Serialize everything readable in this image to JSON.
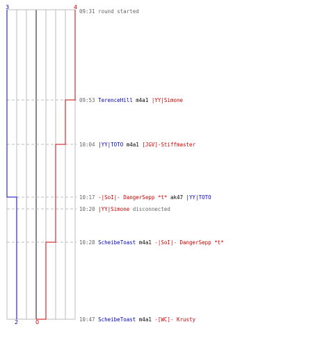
{
  "chart_data": {
    "type": "line",
    "counts": {
      "blue_top": "3",
      "red_top": "4",
      "blue_bottom": "2",
      "red_bottom": "0"
    },
    "colors": {
      "blue": "#0000bb",
      "red": "#cc0000",
      "time": "#666666",
      "grid": "#bbbbbb",
      "text": "#000000"
    },
    "events": [
      {
        "time": "09:31",
        "parts": [
          {
            "text": "round started",
            "color": "time"
          }
        ]
      },
      {
        "time": "09:53",
        "parts": [
          {
            "text": "TerenceHill",
            "color": "blue"
          },
          {
            "text": " m4a1 ",
            "color": "text"
          },
          {
            "text": "|YY|Simone",
            "color": "red"
          }
        ]
      },
      {
        "time": "10:04",
        "parts": [
          {
            "text": "|YY|TOTO",
            "color": "blue"
          },
          {
            "text": " m4a1 ",
            "color": "text"
          },
          {
            "text": "[JGV]-Stiffmaster",
            "color": "red"
          }
        ]
      },
      {
        "time": "10:17",
        "parts": [
          {
            "text": "-|SoI|- DangerSepp *t*",
            "color": "red"
          },
          {
            "text": " ak47 ",
            "color": "text"
          },
          {
            "text": "|YY|TOTO",
            "color": "blue"
          }
        ]
      },
      {
        "time": "10:20",
        "parts": [
          {
            "text": "|YY|Simone",
            "color": "red"
          },
          {
            "text": " disconnected",
            "color": "time"
          }
        ]
      },
      {
        "time": "10:28",
        "parts": [
          {
            "text": "ScheibeToast",
            "color": "blue"
          },
          {
            "text": " m4a1 ",
            "color": "text"
          },
          {
            "text": "-|SoI|- DangerSepp *t*",
            "color": "red"
          }
        ]
      },
      {
        "time": "10:47",
        "parts": [
          {
            "text": "ScheibeToast",
            "color": "blue"
          },
          {
            "text": " m4a1 ",
            "color": "text"
          },
          {
            "text": "-[WC]- Krusty",
            "color": "red"
          }
        ]
      }
    ],
    "blue_series": [
      3,
      3,
      3,
      2,
      2,
      2,
      2
    ],
    "red_series": [
      4,
      3,
      2,
      2,
      2,
      1,
      0
    ]
  }
}
